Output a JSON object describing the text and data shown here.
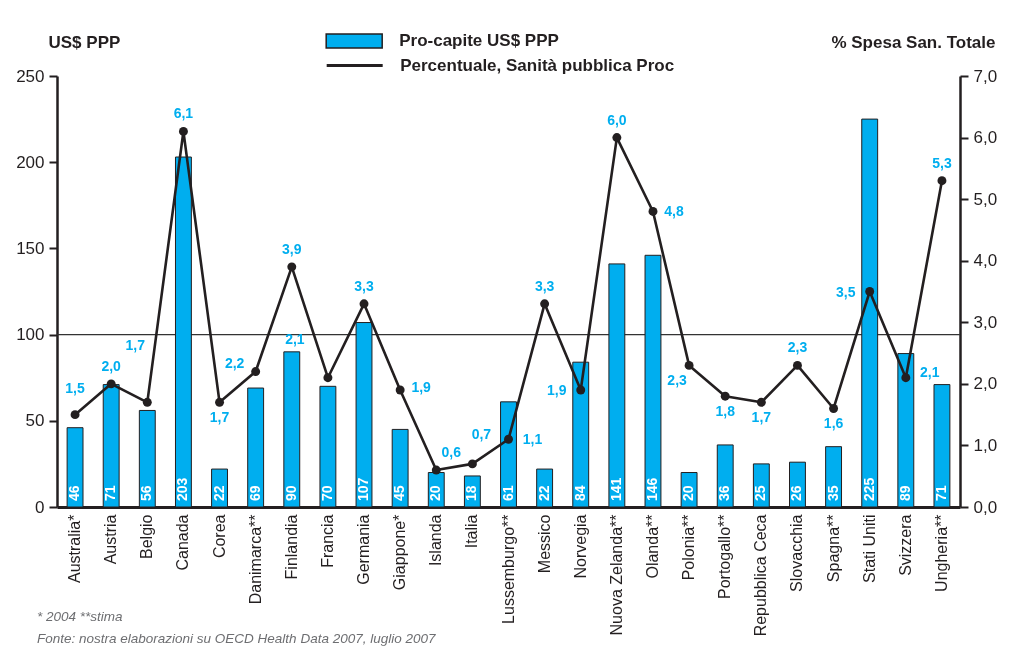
{
  "chart_data": {
    "type": "bar",
    "categories": [
      "Australia*",
      "Austria",
      "Belgio",
      "Canada",
      "Corea",
      "Danimarca**",
      "Finlandia",
      "Francia",
      "Germania",
      "Giappone*",
      "Islanda",
      "Italia",
      "Lussemburgo**",
      "Messico",
      "Norvegia",
      "Nuova Zelanda**",
      "Olanda**",
      "Polonia**",
      "Portogallo**",
      "Repubblica Ceca",
      "Slovacchia",
      "Spagna**",
      "Stati Uniti",
      "Svizzera",
      "Ungheria**"
    ],
    "series": [
      {
        "name": "Pro-capite US$ PPP",
        "color": "#00aeef",
        "values": [
          46,
          71,
          56,
          203,
          22,
          69,
          90,
          70,
          107,
          45,
          20,
          18,
          61,
          22,
          84,
          141,
          146,
          20,
          36,
          25,
          26,
          35,
          225,
          89,
          71
        ],
        "value_labels": [
          "46",
          "71",
          "56",
          "203",
          "22",
          "69",
          "90",
          "70",
          "107",
          "45",
          "20",
          "18",
          "61",
          "22",
          "84",
          "141",
          "146",
          "20",
          "36",
          "25",
          "26",
          "35",
          "225",
          "89",
          "71"
        ]
      },
      {
        "name": "Percentuale, Sanità pubblica Proc",
        "type": "line",
        "axis": "y2",
        "color": "#231f20",
        "values": [
          1.5,
          2.0,
          1.7,
          6.1,
          1.7,
          2.2,
          3.9,
          2.1,
          3.3,
          1.9,
          0.6,
          0.7,
          1.1,
          3.3,
          1.9,
          6.0,
          4.8,
          2.3,
          1.8,
          1.7,
          2.3,
          1.6,
          3.5,
          2.1,
          5.3
        ],
        "value_labels": [
          "1,5",
          "2,0",
          "1,7",
          "6,1",
          "1,7",
          "2,2",
          "3,9",
          "2,1",
          "3,3",
          "1,9",
          "0,6",
          "0,7",
          "1,1",
          "3,3",
          "1,9",
          "6,0",
          "4,8",
          "2,3",
          "1,8",
          "1,7",
          "2,3",
          "1,6",
          "3,5",
          "2,1",
          "5,3"
        ]
      }
    ],
    "ylabel": "US$ PPP",
    "y2label": "% Spesa San. Totale",
    "ylim": [
      0,
      250
    ],
    "yticks": [
      0,
      50,
      100,
      150,
      200,
      250
    ],
    "y2lim": [
      0,
      7
    ],
    "y2ticks": [
      {
        "value": 0,
        "label": "0,0"
      },
      {
        "value": 1,
        "label": "1,0"
      },
      {
        "value": 2,
        "label": "2,0"
      },
      {
        "value": 3,
        "label": "3,0"
      },
      {
        "value": 4,
        "label": "4,0"
      },
      {
        "value": 5,
        "label": "5,0"
      },
      {
        "value": 6,
        "label": "6,0"
      },
      {
        "value": 7,
        "label": "7,0"
      }
    ],
    "ref_lines": [
      {
        "axis": "y",
        "value": 100,
        "color": "#333333"
      }
    ],
    "annotations": [
      "* 2004   **stima",
      "Fonte: nostra elaborazioni su OECD Health Data 2007, luglio 2007"
    ],
    "legend": "top",
    "marker": "circle",
    "line_style": "solid"
  }
}
